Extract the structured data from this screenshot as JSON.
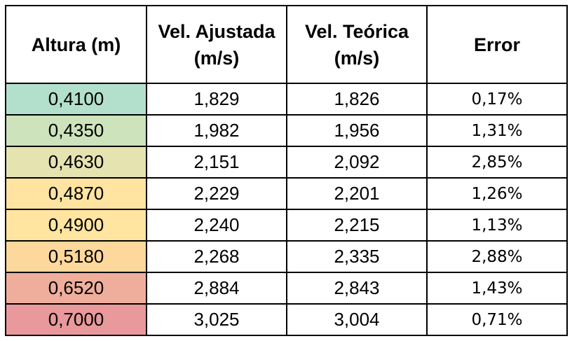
{
  "table": {
    "headers": [
      {
        "lines": [
          "Altura (m)"
        ]
      },
      {
        "lines": [
          "Vel. Ajustada",
          "(m/s)"
        ]
      },
      {
        "lines": [
          "Vel. Teórica",
          "(m/s)"
        ]
      },
      {
        "lines": [
          "Error"
        ]
      }
    ],
    "rows": [
      {
        "altura": "0,4100",
        "ajustada": "1,829",
        "teorica": "1,826",
        "error": "0,17%",
        "color": "#b3e0cc"
      },
      {
        "altura": "0,4350",
        "ajustada": "1,982",
        "teorica": "1,956",
        "error": "1,31%",
        "color": "#cde3bb"
      },
      {
        "altura": "0,4630",
        "ajustada": "2,151",
        "teorica": "2,092",
        "error": "2,85%",
        "color": "#e5e3b0"
      },
      {
        "altura": "0,4870",
        "ajustada": "2,229",
        "teorica": "2,201",
        "error": "1,26%",
        "color": "#ffe4a1"
      },
      {
        "altura": "0,4900",
        "ajustada": "2,240",
        "teorica": "2,215",
        "error": "1,13%",
        "color": "#ffe59f"
      },
      {
        "altura": "0,5180",
        "ajustada": "2,268",
        "teorica": "2,335",
        "error": "2,88%",
        "color": "#fdd89c"
      },
      {
        "altura": "0,6520",
        "ajustada": "2,884",
        "teorica": "2,843",
        "error": "1,43%",
        "color": "#efae9c"
      },
      {
        "altura": "0,7000",
        "ajustada": "3,025",
        "teorica": "3,004",
        "error": "0,71%",
        "color": "#e9999b"
      }
    ]
  }
}
